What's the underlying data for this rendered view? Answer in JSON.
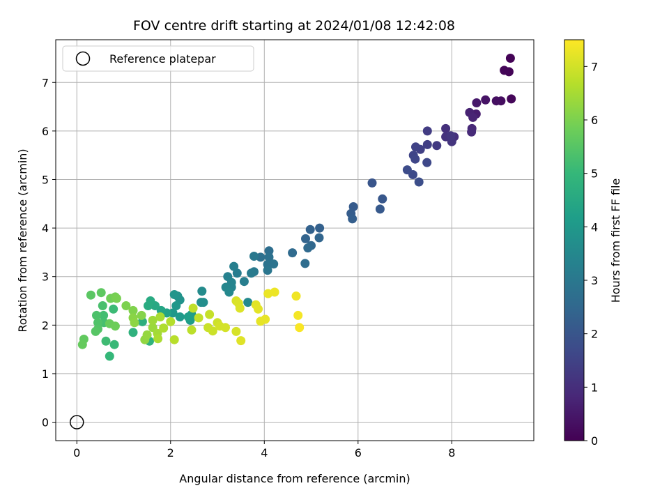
{
  "chart_data": {
    "type": "scatter",
    "title": "FOV centre drift starting at 2024/01/08 12:42:08",
    "xlabel": "Angular distance from reference (arcmin)",
    "ylabel": "Rotation from reference (arcmin)",
    "xlim": [
      -0.45,
      9.75
    ],
    "ylim": [
      -0.38,
      7.88
    ],
    "xticks": [
      0,
      2,
      4,
      6,
      8
    ],
    "yticks": [
      0,
      1,
      2,
      3,
      4,
      5,
      6,
      7
    ],
    "grid": true,
    "legend": {
      "placement": "top-left",
      "entries": [
        "Reference platepar"
      ]
    },
    "reference_point": {
      "x": 0,
      "y": 0
    },
    "colorbar": {
      "label": "Hours from first FF file",
      "colormap": "viridis",
      "range": [
        0,
        7.5
      ],
      "ticks": [
        0,
        1,
        2,
        3,
        4,
        5,
        6,
        7
      ]
    },
    "points": [
      [
        9.25,
        7.5,
        0.05
      ],
      [
        9.22,
        7.22,
        0.08
      ],
      [
        9.12,
        7.25,
        0.1
      ],
      [
        9.27,
        6.66,
        0.12
      ],
      [
        9.05,
        6.62,
        0.25
      ],
      [
        8.95,
        6.62,
        0.3
      ],
      [
        8.72,
        6.64,
        0.4
      ],
      [
        8.53,
        6.58,
        0.5
      ],
      [
        8.52,
        6.35,
        0.6
      ],
      [
        8.38,
        6.38,
        0.7
      ],
      [
        8.45,
        6.28,
        0.75
      ],
      [
        8.43,
        6.05,
        0.85
      ],
      [
        8.42,
        5.98,
        0.9
      ],
      [
        8.05,
        5.88,
        1.0
      ],
      [
        7.87,
        6.05,
        1.05
      ],
      [
        7.87,
        5.88,
        1.1
      ],
      [
        8.0,
        5.78,
        1.15
      ],
      [
        7.98,
        5.9,
        1.2
      ],
      [
        7.68,
        5.7,
        1.3
      ],
      [
        7.48,
        6.0,
        1.35
      ],
      [
        7.48,
        5.72,
        1.4
      ],
      [
        7.33,
        5.62,
        1.45
      ],
      [
        7.23,
        5.67,
        1.5
      ],
      [
        7.18,
        5.5,
        1.55
      ],
      [
        7.22,
        5.42,
        1.6
      ],
      [
        7.47,
        5.35,
        1.65
      ],
      [
        7.17,
        5.1,
        1.7
      ],
      [
        7.05,
        5.2,
        1.75
      ],
      [
        7.3,
        4.95,
        1.8
      ],
      [
        6.3,
        4.93,
        2.0
      ],
      [
        6.52,
        4.6,
        2.05
      ],
      [
        6.47,
        4.39,
        2.1
      ],
      [
        5.9,
        4.44,
        2.15
      ],
      [
        5.85,
        4.3,
        2.2
      ],
      [
        5.88,
        4.19,
        2.25
      ],
      [
        5.18,
        4.0,
        2.3
      ],
      [
        4.98,
        3.97,
        2.35
      ],
      [
        4.88,
        3.78,
        2.4
      ],
      [
        5.17,
        3.8,
        2.45
      ],
      [
        5.0,
        3.64,
        2.5
      ],
      [
        4.93,
        3.59,
        2.55
      ],
      [
        4.6,
        3.49,
        2.6
      ],
      [
        4.87,
        3.27,
        2.65
      ],
      [
        4.1,
        3.53,
        2.7
      ],
      [
        3.92,
        3.4,
        2.75
      ],
      [
        4.1,
        3.4,
        2.8
      ],
      [
        4.07,
        3.25,
        2.85
      ],
      [
        4.2,
        3.26,
        2.9
      ],
      [
        4.07,
        3.13,
        2.95
      ],
      [
        3.78,
        3.42,
        3.0
      ],
      [
        3.78,
        3.1,
        3.05
      ],
      [
        3.72,
        3.07,
        3.1
      ],
      [
        3.42,
        3.07,
        3.15
      ],
      [
        3.57,
        2.9,
        3.2
      ],
      [
        3.35,
        3.21,
        3.25
      ],
      [
        3.22,
        3.0,
        3.3
      ],
      [
        3.3,
        2.88,
        3.35
      ],
      [
        3.3,
        2.78,
        3.4
      ],
      [
        3.18,
        2.78,
        3.45
      ],
      [
        3.25,
        2.68,
        3.5
      ],
      [
        3.65,
        2.47,
        3.55
      ],
      [
        2.67,
        2.7,
        3.6
      ],
      [
        2.7,
        2.47,
        3.65
      ],
      [
        2.65,
        2.47,
        3.7
      ],
      [
        2.2,
        2.52,
        3.8
      ],
      [
        2.15,
        2.6,
        3.85
      ],
      [
        2.08,
        2.63,
        3.9
      ],
      [
        2.12,
        2.4,
        3.95
      ],
      [
        2.05,
        2.25,
        4.0
      ],
      [
        2.2,
        2.17,
        4.05
      ],
      [
        2.45,
        2.22,
        4.1
      ],
      [
        2.42,
        2.1,
        4.15
      ],
      [
        2.38,
        2.17,
        4.2
      ],
      [
        1.92,
        2.25,
        4.3
      ],
      [
        1.8,
        2.3,
        4.4
      ],
      [
        1.67,
        2.4,
        4.5
      ],
      [
        1.57,
        2.5,
        4.55
      ],
      [
        1.52,
        2.4,
        4.6
      ],
      [
        1.4,
        2.07,
        4.7
      ],
      [
        1.2,
        1.85,
        4.8
      ],
      [
        1.55,
        1.67,
        4.85
      ],
      [
        0.7,
        1.36,
        5.0
      ],
      [
        0.8,
        1.6,
        5.05
      ],
      [
        0.78,
        2.33,
        5.1
      ],
      [
        0.62,
        1.67,
        5.15
      ],
      [
        0.57,
        2.2,
        5.2
      ],
      [
        0.58,
        2.05,
        5.25
      ],
      [
        0.55,
        2.4,
        5.3
      ],
      [
        0.42,
        2.2,
        5.35
      ],
      [
        0.45,
        2.05,
        5.4
      ],
      [
        0.45,
        1.92,
        5.45
      ],
      [
        0.4,
        1.87,
        5.5
      ],
      [
        0.3,
        2.62,
        5.55
      ],
      [
        0.52,
        2.67,
        5.6
      ],
      [
        0.15,
        1.71,
        5.65
      ],
      [
        0.12,
        1.6,
        5.7
      ],
      [
        0.7,
        2.03,
        5.75
      ],
      [
        0.82,
        1.98,
        5.8
      ],
      [
        0.72,
        2.55,
        5.85
      ],
      [
        0.82,
        2.58,
        5.9
      ],
      [
        0.85,
        2.55,
        5.95
      ],
      [
        1.05,
        2.4,
        6.0
      ],
      [
        1.2,
        2.3,
        6.05
      ],
      [
        1.38,
        2.2,
        6.1
      ],
      [
        1.2,
        2.15,
        6.15
      ],
      [
        1.23,
        2.05,
        6.2
      ],
      [
        1.45,
        1.7,
        6.25
      ],
      [
        1.5,
        1.8,
        6.3
      ],
      [
        1.62,
        1.95,
        6.35
      ],
      [
        1.62,
        2.1,
        6.4
      ],
      [
        1.72,
        1.83,
        6.45
      ],
      [
        1.78,
        2.17,
        6.5
      ],
      [
        1.73,
        1.72,
        6.55
      ],
      [
        1.85,
        1.94,
        6.6
      ],
      [
        2.0,
        2.07,
        6.65
      ],
      [
        2.08,
        1.7,
        6.7
      ],
      [
        2.45,
        1.9,
        6.75
      ],
      [
        2.48,
        2.35,
        6.78
      ],
      [
        2.6,
        2.15,
        6.8
      ],
      [
        2.83,
        2.22,
        6.85
      ],
      [
        2.8,
        1.95,
        6.9
      ],
      [
        2.9,
        1.88,
        6.92
      ],
      [
        3.0,
        2.05,
        6.95
      ],
      [
        3.05,
        1.98,
        7.0
      ],
      [
        3.17,
        1.95,
        7.02
      ],
      [
        3.4,
        1.87,
        7.05
      ],
      [
        3.4,
        2.5,
        7.07
      ],
      [
        3.45,
        2.45,
        7.1
      ],
      [
        3.48,
        2.35,
        7.12
      ],
      [
        3.5,
        1.68,
        7.15
      ],
      [
        3.82,
        2.42,
        7.18
      ],
      [
        3.87,
        2.33,
        7.2
      ],
      [
        3.92,
        2.08,
        7.22
      ],
      [
        4.02,
        2.12,
        7.25
      ],
      [
        4.08,
        2.65,
        7.28
      ],
      [
        4.22,
        2.68,
        7.3
      ],
      [
        4.68,
        2.6,
        7.35
      ],
      [
        4.72,
        2.2,
        7.4
      ],
      [
        4.75,
        1.95,
        7.45
      ]
    ]
  }
}
